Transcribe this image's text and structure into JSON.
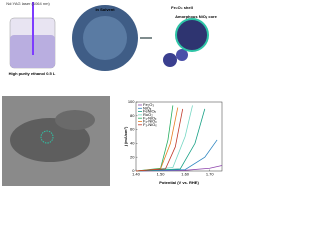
{
  "schematic": {
    "laser_label": "Nd:YAG laser (1064 nm)",
    "beaker_label": "High purity ethanol 0.5 L",
    "solvent_label": "In Solvent",
    "shell_label": "Fe₂O₃ shell",
    "core_label": "Amorphous NiOₓ core"
  },
  "chart_data": {
    "type": "line",
    "xlabel": "Potential (V vs. RHE)",
    "ylabel": "j (mA/cm²)",
    "xlim": [
      1.4,
      1.75
    ],
    "xticks": [
      {
        "value": 1.4,
        "label": "1.40"
      },
      {
        "value": 1.5,
        "label": "1.50"
      },
      {
        "value": 1.6,
        "label": "1.60"
      },
      {
        "value": 1.7,
        "label": "1.70"
      }
    ],
    "ylim": [
      0,
      100
    ],
    "yticks": [
      0,
      20,
      40,
      60,
      80,
      100
    ],
    "series": [
      {
        "name": "Fe₂O₃",
        "color": "#8e44ad",
        "x": [
          1.4,
          1.6,
          1.7,
          1.75
        ],
        "values": [
          0,
          1,
          4,
          8
        ]
      },
      {
        "name": "NiOₓ",
        "color": "#2e86c1",
        "x": [
          1.4,
          1.6,
          1.68,
          1.73
        ],
        "values": [
          0,
          2,
          20,
          45
        ]
      },
      {
        "name": "FeNiOₓ",
        "color": "#16a085",
        "x": [
          1.4,
          1.58,
          1.64,
          1.68
        ],
        "values": [
          0,
          3,
          40,
          90
        ]
      },
      {
        "name": "RuO₂",
        "color": "#76d7c4",
        "x": [
          1.4,
          1.55,
          1.6,
          1.63
        ],
        "values": [
          0,
          5,
          50,
          95
        ]
      },
      {
        "name": "F₁-NiOₓ",
        "color": "#27ae60",
        "x": [
          1.4,
          1.5,
          1.53,
          1.55
        ],
        "values": [
          0,
          4,
          45,
          95
        ]
      },
      {
        "name": "F₂-NiOₓ",
        "color": "#e67e22",
        "x": [
          1.4,
          1.5,
          1.54,
          1.57
        ],
        "values": [
          0,
          3,
          40,
          92
        ]
      },
      {
        "name": "F₃-NiOₓ",
        "color": "#c0392b",
        "x": [
          1.4,
          1.52,
          1.56,
          1.59
        ],
        "values": [
          0,
          3,
          35,
          90
        ]
      }
    ]
  }
}
